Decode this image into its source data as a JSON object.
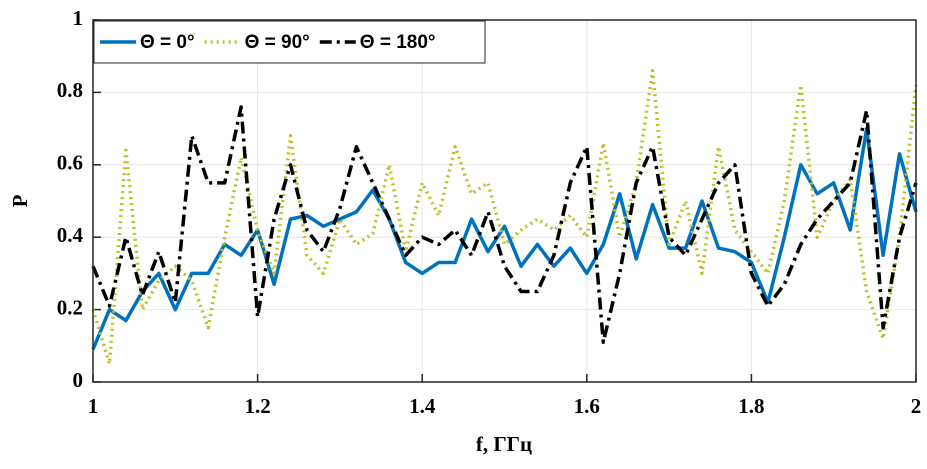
{
  "chart_data": {
    "type": "line",
    "x_label": "f, ГГц",
    "y_label": "P",
    "x": [
      1.0,
      1.02,
      1.04,
      1.06,
      1.08,
      1.1,
      1.12,
      1.14,
      1.16,
      1.18,
      1.2,
      1.22,
      1.24,
      1.26,
      1.28,
      1.3,
      1.32,
      1.34,
      1.36,
      1.38,
      1.4,
      1.42,
      1.44,
      1.46,
      1.48,
      1.5,
      1.52,
      1.54,
      1.56,
      1.58,
      1.6,
      1.62,
      1.64,
      1.66,
      1.68,
      1.7,
      1.72,
      1.74,
      1.76,
      1.78,
      1.8,
      1.82,
      1.84,
      1.86,
      1.88,
      1.9,
      1.92,
      1.94,
      1.96,
      1.98,
      2.0
    ],
    "series": [
      {
        "name": "Θ = 0°",
        "color": "#0072bd",
        "line_style": "solid",
        "values": [
          0.09,
          0.2,
          0.17,
          0.25,
          0.3,
          0.2,
          0.3,
          0.3,
          0.38,
          0.35,
          0.42,
          0.27,
          0.45,
          0.46,
          0.43,
          0.45,
          0.47,
          0.53,
          0.45,
          0.33,
          0.3,
          0.33,
          0.33,
          0.45,
          0.36,
          0.43,
          0.32,
          0.38,
          0.32,
          0.37,
          0.3,
          0.38,
          0.52,
          0.34,
          0.49,
          0.37,
          0.37,
          0.5,
          0.37,
          0.36,
          0.33,
          0.22,
          0.4,
          0.6,
          0.52,
          0.55,
          0.42,
          0.7,
          0.35,
          0.63,
          0.47
        ]
      },
      {
        "name": "Θ = 90°",
        "color": "#bfbf26",
        "line_style": "dotted",
        "values": [
          0.2,
          0.05,
          0.64,
          0.2,
          0.28,
          0.32,
          0.28,
          0.15,
          0.4,
          0.62,
          0.42,
          0.3,
          0.68,
          0.35,
          0.3,
          0.45,
          0.38,
          0.41,
          0.6,
          0.36,
          0.55,
          0.46,
          0.65,
          0.52,
          0.55,
          0.38,
          0.42,
          0.45,
          0.42,
          0.46,
          0.4,
          0.66,
          0.4,
          0.55,
          0.86,
          0.38,
          0.5,
          0.3,
          0.65,
          0.42,
          0.36,
          0.3,
          0.5,
          0.82,
          0.4,
          0.5,
          0.56,
          0.25,
          0.12,
          0.4,
          0.82
        ]
      },
      {
        "name": "Θ = 180°",
        "color": "#000000",
        "line_style": "dashdot",
        "values": [
          0.32,
          0.21,
          0.4,
          0.24,
          0.36,
          0.22,
          0.68,
          0.55,
          0.55,
          0.76,
          0.18,
          0.45,
          0.6,
          0.42,
          0.36,
          0.48,
          0.65,
          0.55,
          0.45,
          0.35,
          0.4,
          0.38,
          0.42,
          0.35,
          0.47,
          0.32,
          0.25,
          0.25,
          0.35,
          0.55,
          0.65,
          0.11,
          0.3,
          0.55,
          0.65,
          0.4,
          0.35,
          0.45,
          0.55,
          0.6,
          0.3,
          0.21,
          0.27,
          0.38,
          0.45,
          0.5,
          0.55,
          0.75,
          0.15,
          0.4,
          0.55
        ]
      }
    ],
    "xlim": [
      1,
      2
    ],
    "xticks": [
      1,
      1.2,
      1.4,
      1.6,
      1.8,
      2
    ],
    "ylim": [
      0,
      1
    ],
    "yticks": [
      0,
      0.2,
      0.4,
      0.6,
      0.8,
      1
    ],
    "grid": true,
    "legend": "top-left"
  }
}
